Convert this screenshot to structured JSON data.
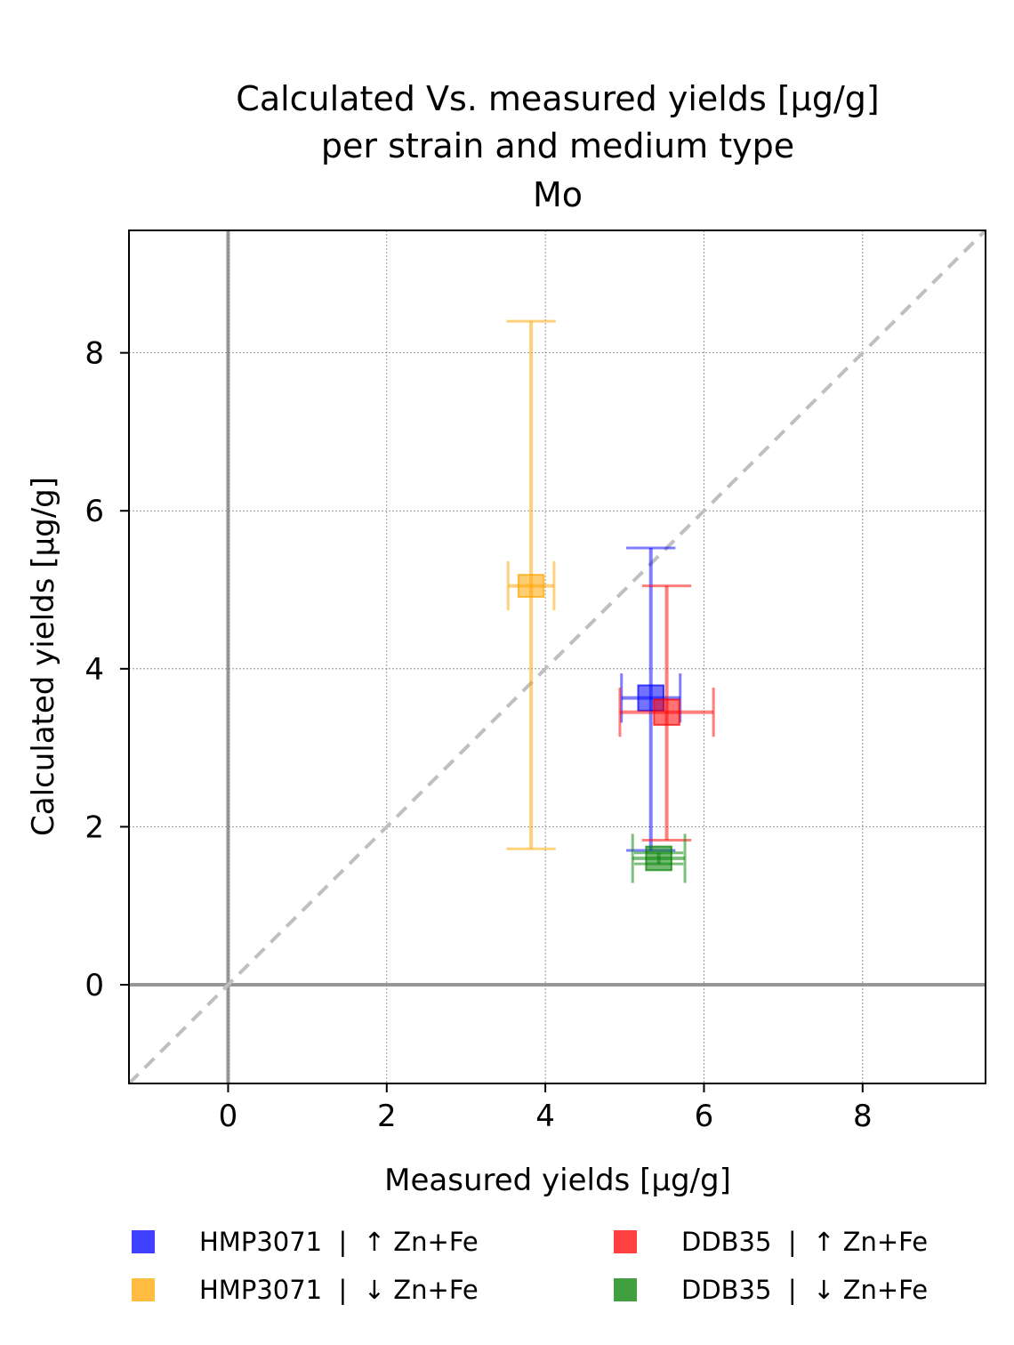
{
  "chart_data": {
    "type": "scatter",
    "title": [
      "Calculated Vs. measured yields [µg/g]",
      "per strain and medium type",
      "Mo"
    ],
    "xlabel": "Measured yields [µg/g]",
    "ylabel": "Calculated yields [µg/g]",
    "xlim": [
      -1.25,
      9.55
    ],
    "ylim": [
      -1.25,
      9.55
    ],
    "xticks": [
      "0",
      "2",
      "4",
      "6",
      "8"
    ],
    "yticks": [
      "0",
      "2",
      "4",
      "6",
      "8"
    ],
    "grid": true,
    "identity_line": true,
    "legend_position": "bottom",
    "series": [
      {
        "name": "HMP3071  |  ↑ Zn+Fe",
        "color": "#0000ff",
        "x": 5.33,
        "y": 3.63,
        "x_err_lo": 0.37,
        "x_err_hi": 0.37,
        "y_err_lo": 1.93,
        "y_err_hi": 1.9,
        "x_box": [
          5.17,
          5.49
        ],
        "y_box": [
          3.47,
          3.79
        ],
        "x_cap_half": 0.31
      },
      {
        "name": "HMP3071  |  ↓ Zn+Fe",
        "color": "#ffa500",
        "x": 3.82,
        "y": 5.05,
        "x_err_lo": 0.29,
        "x_err_hi": 0.29,
        "y_err_lo": 3.33,
        "y_err_hi": 3.35,
        "x_box": [
          3.66,
          3.98
        ],
        "y_box": [
          4.91,
          5.19
        ],
        "x_cap_half": 0.31
      },
      {
        "name": "DDB35  |  ↑ Zn+Fe",
        "color": "#ff0000",
        "x": 5.53,
        "y": 3.45,
        "x_err_lo": 0.59,
        "x_err_hi": 0.59,
        "y_err_lo": 1.62,
        "y_err_hi": 1.6,
        "x_box": [
          5.37,
          5.69
        ],
        "y_box": [
          3.29,
          3.61
        ],
        "x_cap_half": 0.31
      },
      {
        "name": "DDB35  |  ↓ Zn+Fe",
        "color": "#008000",
        "x": 5.43,
        "y": 1.6,
        "x_err_lo": 0.33,
        "x_err_hi": 0.33,
        "y_err_lo": 0.07,
        "y_err_hi": 0.07,
        "x_box": [
          5.27,
          5.59
        ],
        "y_box": [
          1.45,
          1.75
        ],
        "x_cap_half": 0.31
      }
    ]
  }
}
